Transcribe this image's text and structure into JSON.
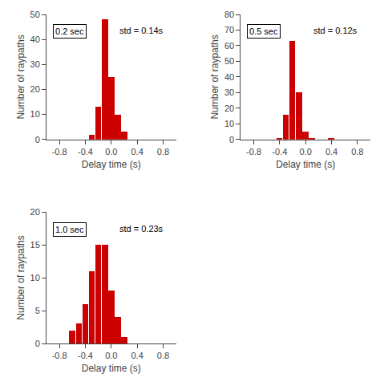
{
  "chart_data": [
    {
      "type": "histogram",
      "bins": [
        -0.85,
        -0.75,
        -0.65,
        -0.55,
        -0.45,
        -0.35,
        -0.25,
        -0.15,
        -0.05,
        0.05,
        0.15,
        0.25,
        0.35,
        0.45,
        0.55,
        0.65,
        0.75,
        0.85
      ],
      "values": [
        0,
        0,
        0,
        0,
        0,
        2,
        13,
        48,
        25,
        10,
        3,
        0,
        0,
        0,
        0,
        0,
        0
      ],
      "color": "#cc0000",
      "xlim": [
        -1.0,
        1.0
      ],
      "xticks": [
        -0.8,
        -0.4,
        {
          "value": 0.0,
          "label": "0.0"
        },
        0.4,
        0.8
      ],
      "ylim": [
        0,
        50
      ],
      "yticks": [
        0,
        10,
        20,
        30,
        40,
        50
      ],
      "xlabel": "Delay time (s)",
      "ylabel": "Number of raypaths",
      "annotations": [
        "0.2 sec",
        "std = 0.14s"
      ],
      "grid": false
    },
    {
      "type": "histogram",
      "bins": [
        -0.85,
        -0.75,
        -0.65,
        -0.55,
        -0.45,
        -0.35,
        -0.25,
        -0.15,
        -0.05,
        0.05,
        0.15,
        0.25,
        0.35,
        0.45,
        0.55,
        0.65,
        0.75,
        0.85
      ],
      "values": [
        0,
        0,
        0,
        0,
        1,
        16,
        63,
        30,
        5,
        1,
        0,
        0,
        1,
        0,
        0,
        0,
        0
      ],
      "color": "#cc0000",
      "xlim": [
        -1.0,
        1.0
      ],
      "xticks": [
        -0.8,
        -0.4,
        {
          "value": 0.0,
          "label": "0.0"
        },
        0.4,
        0.8
      ],
      "ylim": [
        0,
        80
      ],
      "yticks": [
        0,
        10,
        20,
        30,
        40,
        50,
        60,
        70,
        80
      ],
      "xlabel": "Delay time (s)",
      "ylabel": "Number of raypaths",
      "annotations": [
        "0.5 sec",
        "std = 0.12s"
      ],
      "grid": false
    },
    {
      "type": "histogram",
      "bins": [
        -0.85,
        -0.75,
        -0.65,
        -0.55,
        -0.45,
        -0.35,
        -0.25,
        -0.15,
        -0.05,
        0.05,
        0.15,
        0.25,
        0.35,
        0.45,
        0.55,
        0.65,
        0.75,
        0.85
      ],
      "values": [
        0,
        0,
        2,
        3,
        6,
        11,
        15,
        15,
        8,
        4,
        1,
        0,
        0,
        0,
        0,
        0,
        0
      ],
      "color": "#cc0000",
      "xlim": [
        -1.0,
        1.0
      ],
      "xticks": [
        -0.8,
        -0.4,
        {
          "value": 0.0,
          "label": "0.0"
        },
        0.4,
        0.8
      ],
      "ylim": [
        0,
        20
      ],
      "yticks": [
        0,
        5,
        10,
        15,
        20
      ],
      "xlabel": "Delay time (s)",
      "ylabel": "Number of raypaths",
      "annotations": [
        "1.0 sec",
        "std = 0.23s"
      ],
      "grid": false
    }
  ]
}
